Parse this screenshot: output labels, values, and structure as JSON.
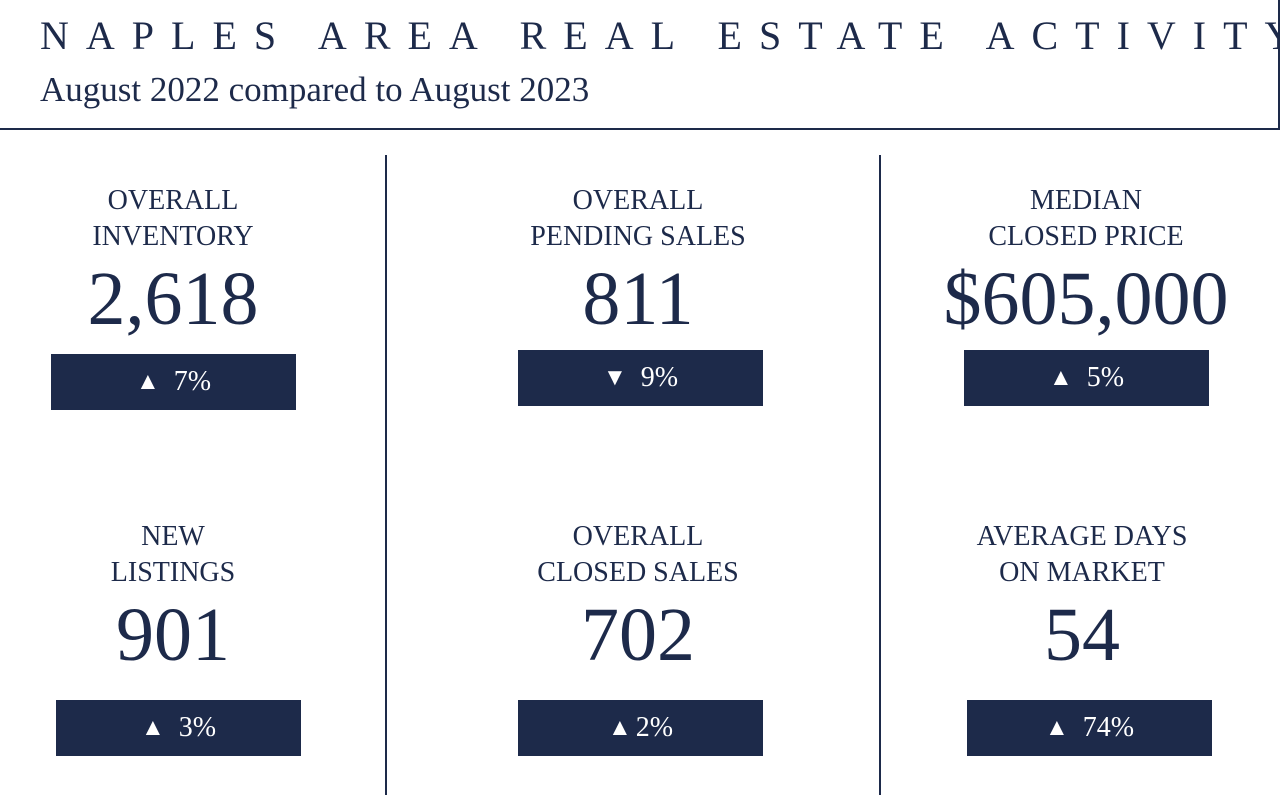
{
  "header": {
    "title": "NAPLES AREA REAL ESTATE ACTIVITY",
    "subtitle": "August 2022 compared to August 2023"
  },
  "colors": {
    "navy": "#1d2a4a",
    "background": "#ffffff"
  },
  "stats": [
    {
      "label_line1": "OVERALL",
      "label_line2": "INVENTORY",
      "value": "2,618",
      "direction": "up",
      "arrow": "▲",
      "change": "7%"
    },
    {
      "label_line1": "OVERALL",
      "label_line2": "PENDING SALES",
      "value": "811",
      "direction": "down",
      "arrow": "▼",
      "change": "9%"
    },
    {
      "label_line1": "MEDIAN",
      "label_line2": "CLOSED PRICE",
      "value": "$605,000",
      "direction": "up",
      "arrow": "▲",
      "change": "5%"
    },
    {
      "label_line1": "NEW",
      "label_line2": "LISTINGS",
      "value": "901",
      "direction": "up",
      "arrow": "▲",
      "change": "3%"
    },
    {
      "label_line1": "OVERALL",
      "label_line2": "CLOSED SALES",
      "value": "702",
      "direction": "up",
      "arrow": "▲",
      "change": "2%"
    },
    {
      "label_line1": "AVERAGE DAYS",
      "label_line2": "ON MARKET",
      "value": "54",
      "direction": "up",
      "arrow": "▲",
      "change": "74%"
    }
  ]
}
